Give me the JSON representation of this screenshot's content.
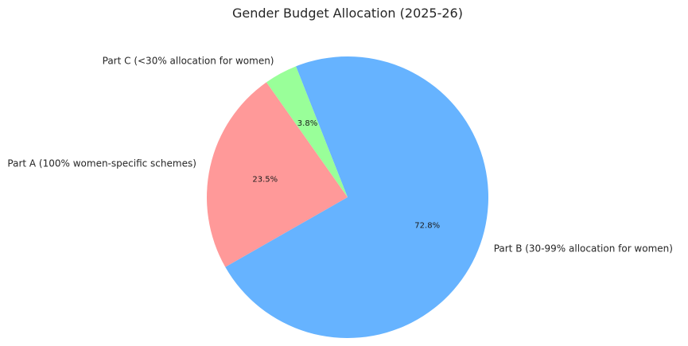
{
  "chart_data": {
    "type": "pie",
    "title": "Gender Budget Allocation (2025-26)",
    "start_angle_deg": 125.2,
    "direction": "counterclockwise",
    "slices": [
      {
        "label": "Part A (100% women-specific schemes)",
        "value": 23.5,
        "pct_label": "23.5%",
        "color": "#ff9999"
      },
      {
        "label": "Part B (30-99% allocation for women)",
        "value": 72.8,
        "pct_label": "72.8%",
        "color": "#66b3ff"
      },
      {
        "label": "Part C (<30% allocation for women)",
        "value": 3.8,
        "pct_label": "3.8%",
        "color": "#99ff99"
      }
    ]
  }
}
